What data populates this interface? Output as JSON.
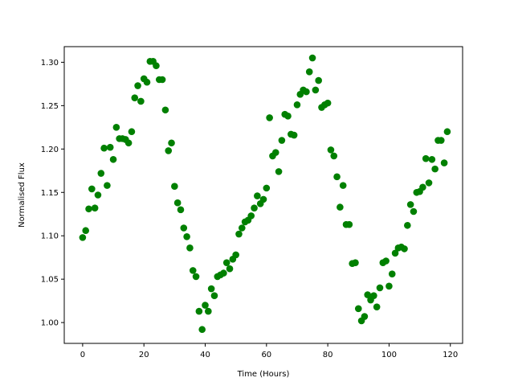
{
  "chart_data": {
    "type": "scatter",
    "title": "",
    "xlabel": "Time (Hours)",
    "ylabel": "Normalised Flux",
    "xlim": [
      -6,
      124
    ],
    "ylim": [
      0.976,
      1.318
    ],
    "xticks": [
      0,
      20,
      40,
      60,
      80,
      100,
      120
    ],
    "yticks": [
      1.0,
      1.05,
      1.1,
      1.15,
      1.2,
      1.25,
      1.3
    ],
    "xtick_labels": [
      "0",
      "20",
      "40",
      "60",
      "80",
      "100",
      "120"
    ],
    "ytick_labels": [
      "1.00",
      "1.05",
      "1.10",
      "1.15",
      "1.20",
      "1.25",
      "1.30"
    ],
    "grid": false,
    "marker_color": "#008000",
    "x": [
      0,
      1,
      2,
      3,
      4,
      5,
      6,
      7,
      8,
      9,
      10,
      11,
      12,
      13,
      14,
      15,
      16,
      17,
      18,
      19,
      20,
      21,
      22,
      23,
      24,
      25,
      26,
      27,
      28,
      29,
      30,
      31,
      32,
      33,
      34,
      35,
      36,
      37,
      38,
      39,
      40,
      41,
      42,
      43,
      44,
      45,
      46,
      47,
      48,
      49,
      50,
      51,
      52,
      53,
      54,
      55,
      56,
      57,
      58,
      59,
      60,
      61,
      62,
      63,
      64,
      65,
      66,
      67,
      68,
      69,
      70,
      71,
      72,
      73,
      74,
      75,
      76,
      77,
      78,
      79,
      80,
      81,
      82,
      83,
      84,
      85,
      86,
      87,
      88,
      89,
      90,
      91,
      92,
      93,
      94,
      95,
      96,
      97,
      98,
      99,
      100,
      101,
      102,
      103,
      104,
      105,
      106,
      107,
      108,
      109,
      110,
      111,
      112,
      113,
      114,
      115,
      116,
      117,
      118,
      119
    ],
    "y": [
      1.098,
      1.106,
      1.131,
      1.154,
      1.132,
      1.147,
      1.172,
      1.201,
      1.158,
      1.202,
      1.188,
      1.225,
      1.212,
      1.212,
      1.211,
      1.207,
      1.22,
      1.259,
      1.273,
      1.255,
      1.281,
      1.277,
      1.301,
      1.301,
      1.296,
      1.28,
      1.28,
      1.245,
      1.198,
      1.207,
      1.157,
      1.138,
      1.13,
      1.109,
      1.099,
      1.086,
      1.06,
      1.053,
      1.013,
      0.992,
      1.02,
      1.013,
      1.039,
      1.031,
      1.053,
      1.055,
      1.057,
      1.069,
      1.062,
      1.073,
      1.078,
      1.102,
      1.109,
      1.116,
      1.118,
      1.123,
      1.132,
      1.146,
      1.137,
      1.142,
      1.155,
      1.236,
      1.192,
      1.196,
      1.174,
      1.21,
      1.24,
      1.238,
      1.217,
      1.216,
      1.251,
      1.263,
      1.268,
      1.266,
      1.289,
      1.305,
      1.268,
      1.279,
      1.248,
      1.251,
      1.253,
      1.199,
      1.192,
      1.168,
      1.133,
      1.158,
      1.113,
      1.113,
      1.068,
      1.069,
      1.016,
      1.002,
      1.007,
      1.032,
      1.026,
      1.031,
      1.018,
      1.04,
      1.069,
      1.071,
      1.042,
      1.056,
      1.08,
      1.086,
      1.087,
      1.085,
      1.112,
      1.136,
      1.128,
      1.15,
      1.151,
      1.156,
      1.189,
      1.161,
      1.188,
      1.177,
      1.21,
      1.21,
      1.184,
      1.22
    ]
  }
}
